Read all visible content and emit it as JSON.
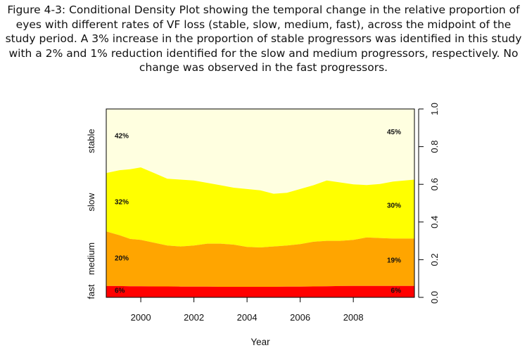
{
  "caption": "Figure 4-3: Conditional Density Plot showing the temporal change in the relative proportion of eyes with different rates of VF loss (stable, slow, medium, fast), across the midpoint of the study period. A 3% increase in the proportion of stable progressors was identified in this study with a 2% and 1% reduction identified for the slow and medium progressors, respectively. No change was observed in the fast progressors.",
  "chart_data": {
    "type": "area",
    "xlabel": "Year",
    "xlim": [
      1998.7,
      2010.3
    ],
    "ylim": [
      0,
      1
    ],
    "x_ticks": [
      2000,
      2002,
      2004,
      2006,
      2008
    ],
    "y_ticks": [
      "0.0",
      "0.2",
      "0.4",
      "0.6",
      "0.8",
      "1.0"
    ],
    "grid": false,
    "stack_order": [
      "fast",
      "medium",
      "slow",
      "stable"
    ],
    "x": [
      1998.7,
      1999.2,
      1999.6,
      2000.0,
      2000.5,
      2001.0,
      2001.5,
      2002.0,
      2002.5,
      2003.0,
      2003.5,
      2004.0,
      2004.5,
      2005.0,
      2005.5,
      2006.0,
      2006.5,
      2007.0,
      2007.5,
      2008.0,
      2008.5,
      2009.0,
      2009.5,
      2010.3
    ],
    "boundaries": {
      "fast_top": [
        0.06,
        0.06,
        0.059,
        0.059,
        0.058,
        0.058,
        0.057,
        0.057,
        0.057,
        0.056,
        0.056,
        0.056,
        0.056,
        0.056,
        0.057,
        0.057,
        0.058,
        0.059,
        0.06,
        0.061,
        0.061,
        0.061,
        0.061,
        0.061
      ],
      "medium_top": [
        0.35,
        0.33,
        0.31,
        0.305,
        0.29,
        0.275,
        0.27,
        0.275,
        0.285,
        0.285,
        0.28,
        0.268,
        0.265,
        0.27,
        0.275,
        0.283,
        0.295,
        0.3,
        0.3,
        0.305,
        0.318,
        0.315,
        0.312,
        0.312
      ],
      "slow_top": [
        0.66,
        0.675,
        0.68,
        0.69,
        0.66,
        0.63,
        0.625,
        0.62,
        0.608,
        0.595,
        0.582,
        0.575,
        0.568,
        0.55,
        0.555,
        0.575,
        0.595,
        0.62,
        0.61,
        0.6,
        0.596,
        0.602,
        0.615,
        0.625
      ]
    },
    "series": [
      {
        "name": "stable",
        "color": "#FFFFE0",
        "start_label": "42%",
        "end_label": "45%"
      },
      {
        "name": "slow",
        "color": "#FFFF00",
        "start_label": "32%",
        "end_label": "30%"
      },
      {
        "name": "medium",
        "color": "#FFA500",
        "start_label": "20%",
        "end_label": "19%"
      },
      {
        "name": "fast",
        "color": "#FF0000",
        "start_label": "6%",
        "end_label": "6%"
      }
    ]
  }
}
